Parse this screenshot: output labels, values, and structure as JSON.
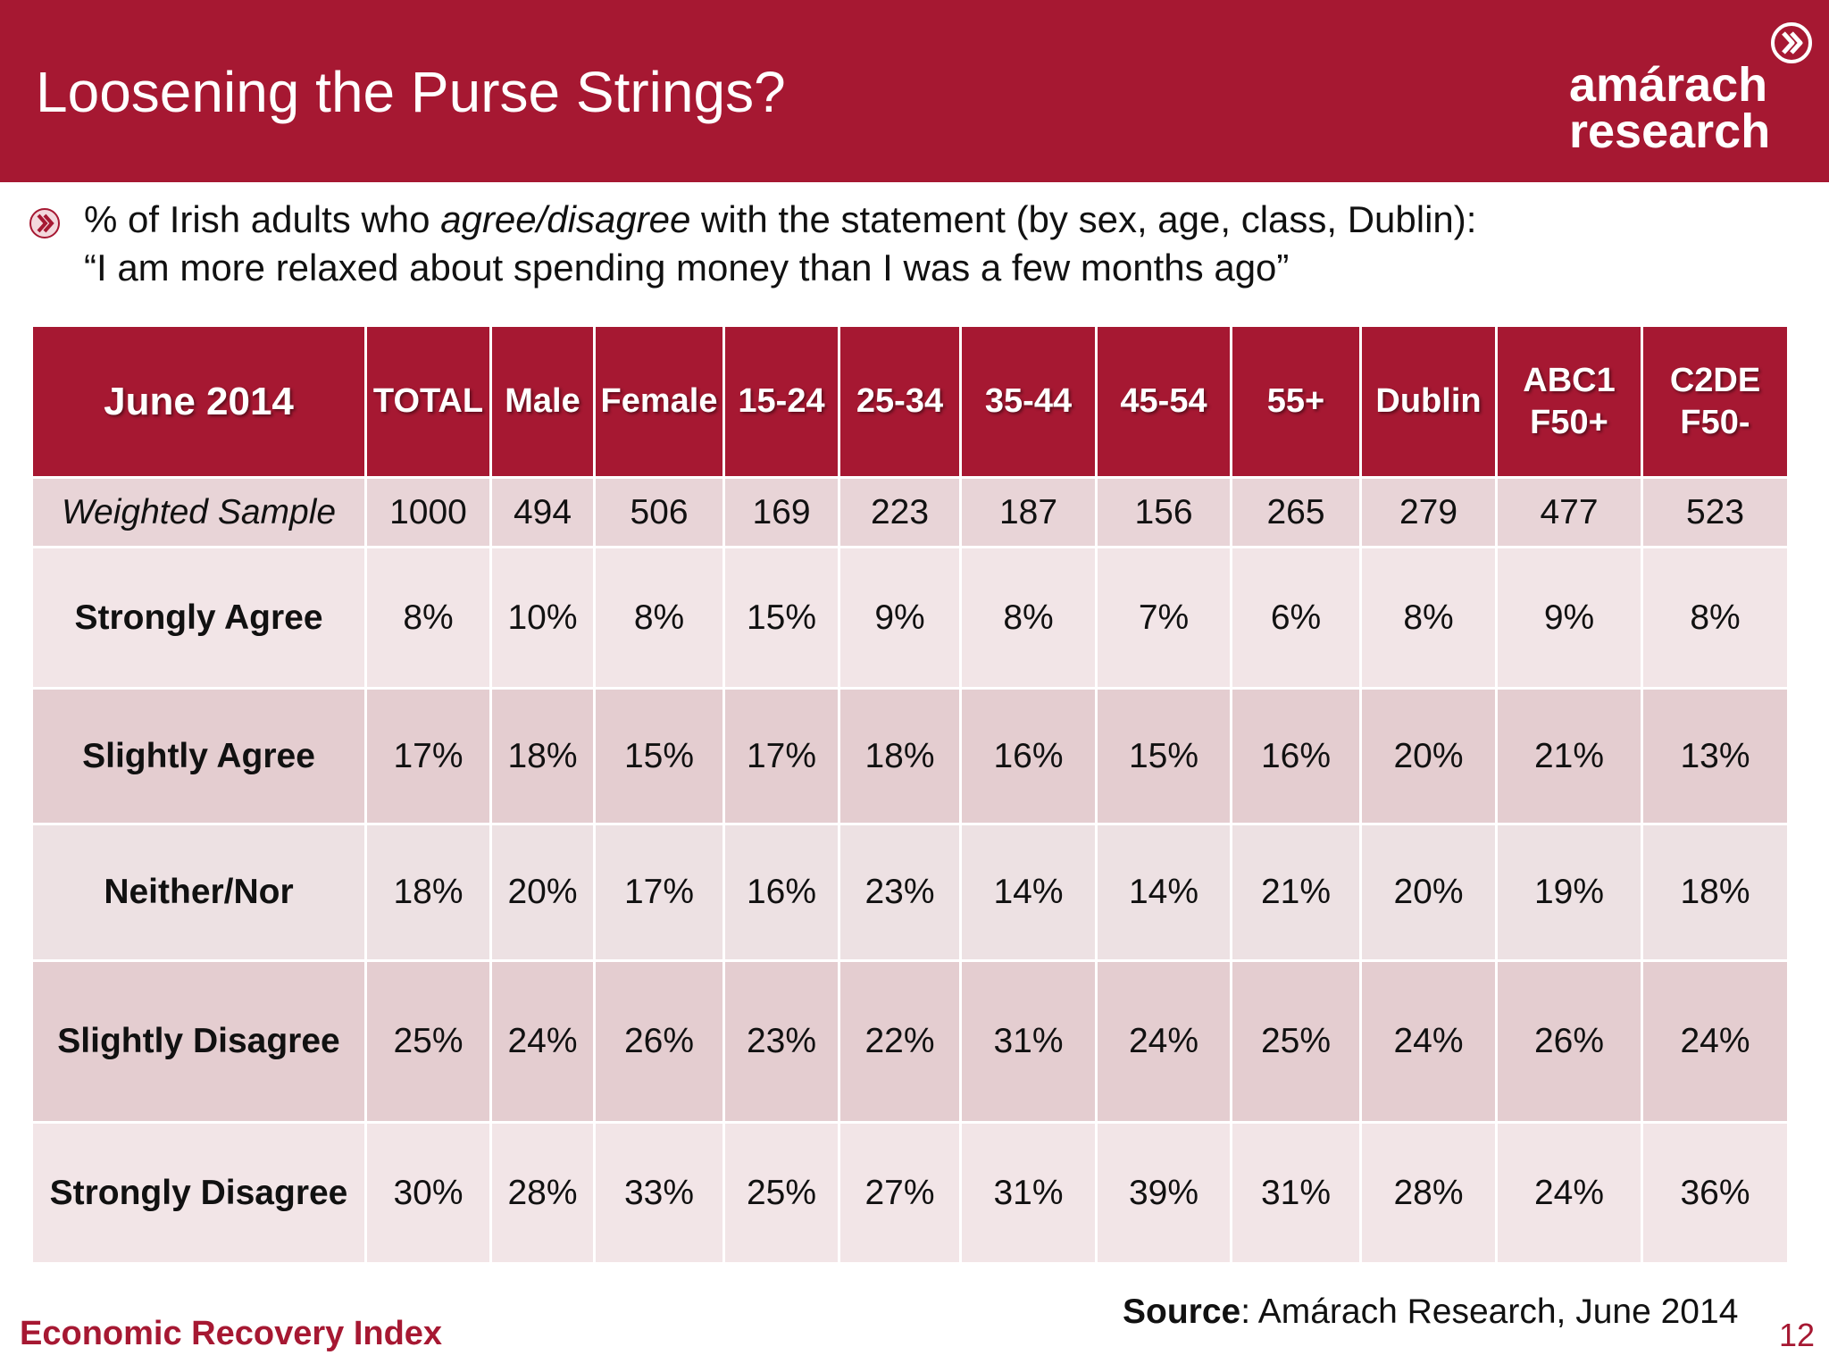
{
  "slide": {
    "title": "Loosening the Purse Strings?",
    "logo": {
      "line1": "amárach",
      "line2": "research",
      "mark_icon": "chevron-circle-icon"
    },
    "intro": {
      "bullet_icon": "chevron-bullet-icon",
      "line1_before": "% of Irish adults who ",
      "line1_emph": "agree/disagree",
      "line1_after": " with the statement (by sex, age, class, Dublin):",
      "line2": "“I am more relaxed about spending money than I was a few months ago”"
    },
    "source": {
      "label": "Source",
      "text": ": Amárach Research, June 2014"
    },
    "footer": "Economic Recovery Index",
    "page_number": "12"
  },
  "colors": {
    "brand": "#a61832",
    "row_light": "#f2e5e7",
    "row_dark": "#e4cdd0",
    "text": "#111111"
  },
  "table": {
    "corner": "June 2014",
    "columns": [
      {
        "line1": "TOTAL",
        "line2": ""
      },
      {
        "line1": "Male",
        "line2": ""
      },
      {
        "line1": "Female",
        "line2": ""
      },
      {
        "line1": "15-24",
        "line2": ""
      },
      {
        "line1": "25-34",
        "line2": ""
      },
      {
        "line1": "35-44",
        "line2": ""
      },
      {
        "line1": "45-54",
        "line2": ""
      },
      {
        "line1": "55+",
        "line2": ""
      },
      {
        "line1": "Dublin",
        "line2": ""
      },
      {
        "line1": "ABC1",
        "line2": "F50+"
      },
      {
        "line1": "C2DE",
        "line2": "F50-"
      }
    ],
    "rows": [
      {
        "label": "Weighted Sample",
        "values": [
          "1000",
          "494",
          "506",
          "169",
          "223",
          "187",
          "156",
          "265",
          "279",
          "477",
          "523"
        ]
      },
      {
        "label": "Strongly Agree",
        "values": [
          "8%",
          "10%",
          "8%",
          "15%",
          "9%",
          "8%",
          "7%",
          "6%",
          "8%",
          "9%",
          "8%"
        ]
      },
      {
        "label": "Slightly Agree",
        "values": [
          "17%",
          "18%",
          "15%",
          "17%",
          "18%",
          "16%",
          "15%",
          "16%",
          "20%",
          "21%",
          "13%"
        ]
      },
      {
        "label": "Neither/Nor",
        "values": [
          "18%",
          "20%",
          "17%",
          "16%",
          "23%",
          "14%",
          "14%",
          "21%",
          "20%",
          "19%",
          "18%"
        ]
      },
      {
        "label": "Slightly Disagree",
        "values": [
          "25%",
          "24%",
          "26%",
          "23%",
          "22%",
          "31%",
          "24%",
          "25%",
          "24%",
          "26%",
          "24%"
        ]
      },
      {
        "label": "Strongly Disagree",
        "values": [
          "30%",
          "28%",
          "33%",
          "25%",
          "27%",
          "31%",
          "39%",
          "31%",
          "28%",
          "24%",
          "36%"
        ]
      }
    ]
  }
}
